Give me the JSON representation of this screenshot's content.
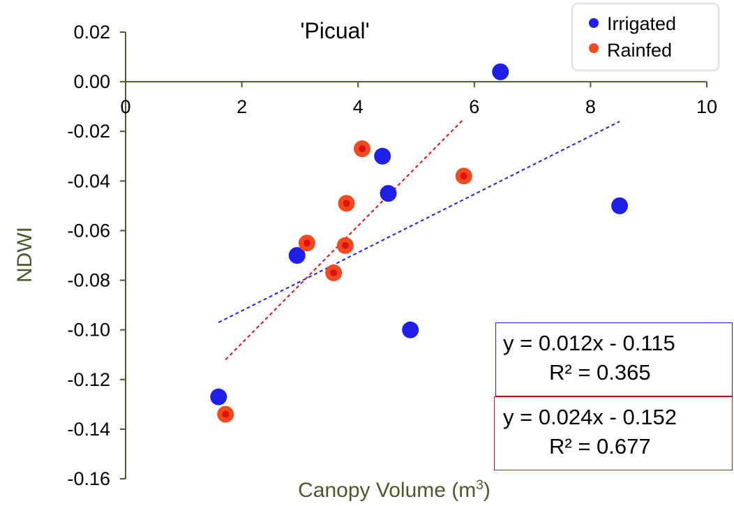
{
  "chart_data": {
    "type": "scatter",
    "title": "'Picual'",
    "xlabel": "Canopy Volume (m",
    "xlabel_sup": "3",
    "xlabel_tail": ")",
    "ylabel": "NDWI",
    "xlim": [
      0,
      10
    ],
    "ylim": [
      -0.16,
      0.02
    ],
    "x_ticks": [
      "0",
      "2",
      "4",
      "6",
      "8",
      "10"
    ],
    "y_ticks": [
      "0.02",
      "0.00",
      "-0.02",
      "-0.04",
      "-0.06",
      "-0.08",
      "-0.10",
      "-0.12",
      "-0.14",
      "-0.16"
    ],
    "grid": false,
    "legend_position": "top-right",
    "series": [
      {
        "name": "Irrigated",
        "color": "#1f1fe8",
        "points": [
          {
            "x": 1.6,
            "y": -0.127
          },
          {
            "x": 2.95,
            "y": -0.07
          },
          {
            "x": 4.42,
            "y": -0.03
          },
          {
            "x": 4.52,
            "y": -0.045
          },
          {
            "x": 4.9,
            "y": -0.1
          },
          {
            "x": 6.45,
            "y": 0.004
          },
          {
            "x": 8.5,
            "y": -0.05
          }
        ],
        "trendline": {
          "x_start": 1.6,
          "x_end": 8.5,
          "y_start": -0.097,
          "y_end": -0.016,
          "color": "#1f1fe8"
        },
        "equation": "y = 0.012x - 0.115",
        "r2": "R² = 0.365"
      },
      {
        "name": "Rainfed",
        "color": "#f04a1e",
        "inner_color": "#e01010",
        "points": [
          {
            "x": 1.72,
            "y": -0.134
          },
          {
            "x": 3.12,
            "y": -0.065
          },
          {
            "x": 3.58,
            "y": -0.077
          },
          {
            "x": 3.78,
            "y": -0.066
          },
          {
            "x": 3.8,
            "y": -0.049
          },
          {
            "x": 4.07,
            "y": -0.027
          },
          {
            "x": 5.82,
            "y": -0.038
          }
        ],
        "trendline": {
          "x_start": 1.72,
          "x_end": 5.82,
          "y_start": -0.112,
          "y_end": -0.015,
          "color": "#e01010"
        },
        "equation": "y = 0.024x - 0.152",
        "r2": "R² = 0.677"
      }
    ],
    "axis_color": "#4a5a2a",
    "axis_label_color": "#4a5a2a"
  }
}
